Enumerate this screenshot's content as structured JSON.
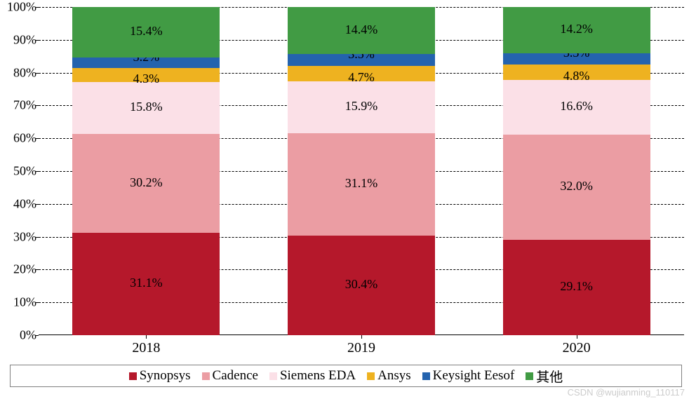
{
  "chart": {
    "type": "stacked-bar-100",
    "background_color": "#ffffff",
    "grid_color": "#000000",
    "grid_style": "dashed",
    "label_fontsize": 18,
    "axis_fontsize": 20,
    "font_family": "Times New Roman",
    "ylim": [
      0,
      100
    ],
    "ytick_step": 10,
    "y_ticks": [
      "0%",
      "10%",
      "20%",
      "30%",
      "40%",
      "50%",
      "60%",
      "70%",
      "80%",
      "90%",
      "100%"
    ],
    "categories": [
      "2018",
      "2019",
      "2020"
    ],
    "bar_width_ratio": 0.68,
    "series": [
      {
        "name": "Synopsys",
        "color": "#b5182b"
      },
      {
        "name": "Cadence",
        "color": "#eb9da3"
      },
      {
        "name": "Siemens EDA",
        "color": "#fbe0e7"
      },
      {
        "name": "Ansys",
        "color": "#eeb220"
      },
      {
        "name": "Keysight Eesof",
        "color": "#2463ae"
      },
      {
        "name": "其他",
        "color": "#419b44"
      }
    ],
    "stacks": [
      {
        "category": "2018",
        "segments": [
          {
            "series": "Synopsys",
            "value": 31.1,
            "label": "31.1%"
          },
          {
            "series": "Cadence",
            "value": 30.2,
            "label": "30.2%"
          },
          {
            "series": "Siemens EDA",
            "value": 15.8,
            "label": "15.8%"
          },
          {
            "series": "Ansys",
            "value": 4.3,
            "label": "4.3%"
          },
          {
            "series": "Keysight Eesof",
            "value": 3.2,
            "label": "3.2%"
          },
          {
            "series": "其他",
            "value": 15.4,
            "label": "15.4%"
          }
        ]
      },
      {
        "category": "2019",
        "segments": [
          {
            "series": "Synopsys",
            "value": 30.4,
            "label": "30.4%"
          },
          {
            "series": "Cadence",
            "value": 31.1,
            "label": "31.1%"
          },
          {
            "series": "Siemens EDA",
            "value": 15.9,
            "label": "15.9%"
          },
          {
            "series": "Ansys",
            "value": 4.7,
            "label": "4.7%"
          },
          {
            "series": "Keysight Eesof",
            "value": 3.5,
            "label": "3.5%"
          },
          {
            "series": "其他",
            "value": 14.4,
            "label": "14.4%"
          }
        ]
      },
      {
        "category": "2020",
        "segments": [
          {
            "series": "Synopsys",
            "value": 29.1,
            "label": "29.1%"
          },
          {
            "series": "Cadence",
            "value": 32.0,
            "label": "32.0%"
          },
          {
            "series": "Siemens EDA",
            "value": 16.6,
            "label": "16.6%"
          },
          {
            "series": "Ansys",
            "value": 4.8,
            "label": "4.8%"
          },
          {
            "series": "Keysight Eesof",
            "value": 3.3,
            "label": "3.3%"
          },
          {
            "series": "其他",
            "value": 14.2,
            "label": "14.2%"
          }
        ]
      }
    ],
    "legend": {
      "position": "bottom",
      "border_color": "#808080"
    }
  },
  "watermark": "CSDN @wujianming_110117"
}
